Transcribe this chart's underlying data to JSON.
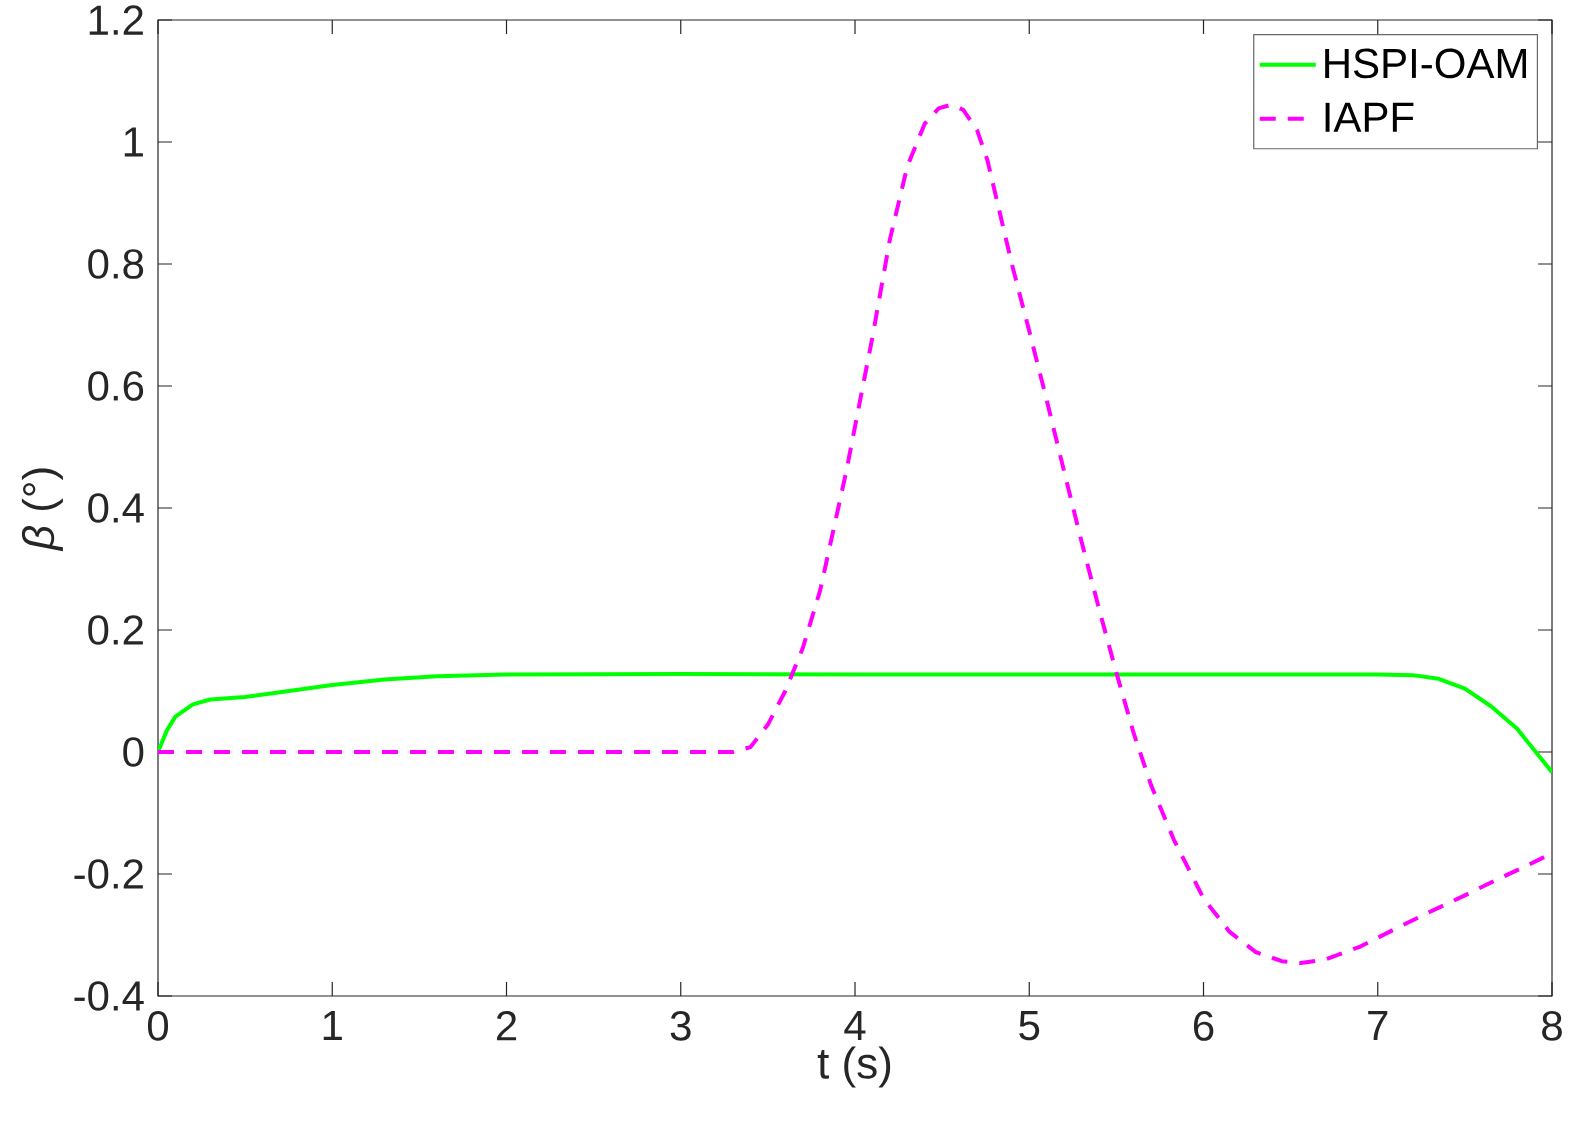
{
  "chart_data": {
    "type": "line",
    "xlabel": "t (s)",
    "ylabel": "*β* (°)",
    "xlim": [
      0,
      8
    ],
    "ylim": [
      -0.4,
      1.2
    ],
    "xticks": [
      0,
      1,
      2,
      3,
      4,
      5,
      6,
      7,
      8
    ],
    "yticks": [
      -0.4,
      -0.2,
      0,
      0.2,
      0.4,
      0.6,
      0.8,
      1,
      1.2
    ],
    "legend": "top right",
    "series": [
      {
        "name": "HSPI-OAM",
        "color": "#00ff00",
        "line_style": "solid",
        "x": [
          0,
          0.05,
          0.1,
          0.2,
          0.3,
          0.5,
          0.7,
          1.0,
          1.3,
          1.6,
          2.0,
          3.0,
          4.0,
          5.0,
          6.0,
          7.0,
          7.2,
          7.35,
          7.5,
          7.65,
          7.8,
          8.0
        ],
        "values": [
          0,
          0.035,
          0.058,
          0.078,
          0.086,
          0.09,
          0.098,
          0.11,
          0.119,
          0.124,
          0.127,
          0.128,
          0.127,
          0.127,
          0.127,
          0.127,
          0.126,
          0.12,
          0.104,
          0.075,
          0.038,
          -0.033
        ]
      },
      {
        "name": "IAPF",
        "color": "#ff00ff",
        "line_style": "dashed",
        "x": [
          0,
          3.3,
          3.4,
          3.5,
          3.6,
          3.7,
          3.8,
          3.95,
          4.1,
          4.2,
          4.3,
          4.4,
          4.48,
          4.55,
          4.62,
          4.7,
          4.76,
          4.9,
          5.0,
          5.1,
          5.2,
          5.3,
          5.4,
          5.5,
          5.6,
          5.7,
          5.83,
          6.0,
          6.15,
          6.3,
          6.45,
          6.56,
          6.7,
          6.9,
          7.1,
          7.3,
          7.5,
          7.7,
          7.85,
          8.0
        ],
        "values": [
          0,
          0,
          0.008,
          0.045,
          0.1,
          0.17,
          0.265,
          0.46,
          0.68,
          0.84,
          0.96,
          1.03,
          1.055,
          1.061,
          1.053,
          1.02,
          0.97,
          0.8,
          0.69,
          0.577,
          0.46,
          0.345,
          0.235,
          0.13,
          0.03,
          -0.055,
          -0.144,
          -0.24,
          -0.295,
          -0.328,
          -0.343,
          -0.346,
          -0.34,
          -0.319,
          -0.29,
          -0.262,
          -0.235,
          -0.207,
          -0.187,
          -0.166
        ]
      }
    ]
  }
}
